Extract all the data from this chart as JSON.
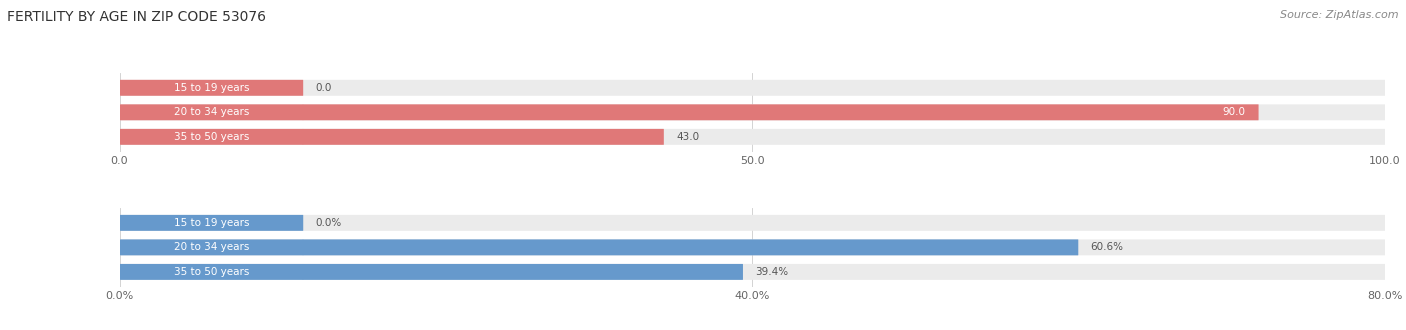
{
  "title": "FERTILITY BY AGE IN ZIP CODE 53076",
  "source": "Source: ZipAtlas.com",
  "top_chart": {
    "categories": [
      "15 to 19 years",
      "20 to 34 years",
      "35 to 50 years"
    ],
    "values": [
      0.0,
      90.0,
      43.0
    ],
    "xlim": [
      0,
      100
    ],
    "xticks": [
      0.0,
      50.0,
      100.0
    ],
    "bar_color": "#E07878",
    "bar_bg_color": "#EBEBEB",
    "label_bg_color": "#E07878",
    "text_color": "#555555"
  },
  "bottom_chart": {
    "categories": [
      "15 to 19 years",
      "20 to 34 years",
      "35 to 50 years"
    ],
    "values": [
      0.0,
      60.6,
      39.4
    ],
    "xlim": [
      0,
      80
    ],
    "xticks": [
      0.0,
      40.0,
      80.0
    ],
    "bar_color": "#6699CC",
    "bar_bg_color": "#EBEBEB",
    "label_bg_color": "#6699CC",
    "text_color": "#555555"
  },
  "background_color": "#FFFFFF",
  "title_fontsize": 10,
  "source_fontsize": 8,
  "bar_label_fontsize": 7.5,
  "bar_value_fontsize": 7.5,
  "tick_fontsize": 8
}
